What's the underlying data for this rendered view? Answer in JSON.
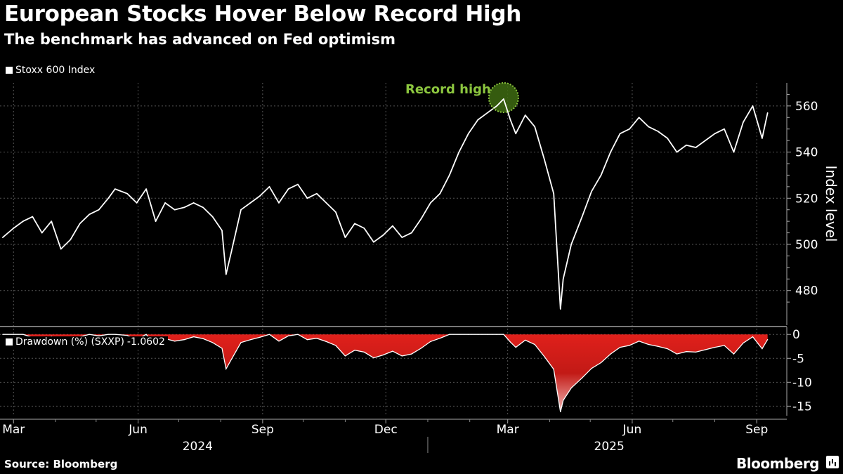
{
  "header": {
    "title": "European Stocks Hover Below Record High",
    "subtitle": "The benchmark has advanced on Fed optimism"
  },
  "footer": {
    "source": "Source: Bloomberg",
    "brand": "Bloomberg"
  },
  "chart_data": [
    {
      "type": "line",
      "series": [
        {
          "name": "Stoxx 600 Index",
          "color": "#ffffff"
        }
      ],
      "ylabel": "Index level",
      "ylim": [
        465,
        570
      ],
      "yticks": [
        480,
        500,
        520,
        540,
        560
      ],
      "annotation": {
        "text": "Record high",
        "date": "2025-02-26",
        "value": 563,
        "color": "#8cc63f"
      },
      "x": [
        "2024-02-22",
        "2024-03-01",
        "2024-03-08",
        "2024-03-15",
        "2024-03-22",
        "2024-03-29",
        "2024-04-05",
        "2024-04-12",
        "2024-04-19",
        "2024-04-26",
        "2024-05-03",
        "2024-05-10",
        "2024-05-15",
        "2024-05-24",
        "2024-05-31",
        "2024-06-07",
        "2024-06-14",
        "2024-06-21",
        "2024-06-28",
        "2024-07-05",
        "2024-07-12",
        "2024-07-19",
        "2024-07-26",
        "2024-08-02",
        "2024-08-05",
        "2024-08-09",
        "2024-08-16",
        "2024-08-23",
        "2024-08-30",
        "2024-09-06",
        "2024-09-13",
        "2024-09-20",
        "2024-09-27",
        "2024-10-04",
        "2024-10-11",
        "2024-10-18",
        "2024-10-25",
        "2024-11-01",
        "2024-11-08",
        "2024-11-15",
        "2024-11-22",
        "2024-11-29",
        "2024-12-06",
        "2024-12-13",
        "2024-12-20",
        "2024-12-27",
        "2025-01-03",
        "2025-01-10",
        "2025-01-17",
        "2025-01-24",
        "2025-01-31",
        "2025-02-07",
        "2025-02-14",
        "2025-02-21",
        "2025-02-26",
        "2025-03-03",
        "2025-03-07",
        "2025-03-14",
        "2025-03-21",
        "2025-03-28",
        "2025-04-04",
        "2025-04-09",
        "2025-04-11",
        "2025-04-17",
        "2025-04-25",
        "2025-05-02",
        "2025-05-09",
        "2025-05-16",
        "2025-05-23",
        "2025-05-30",
        "2025-06-06",
        "2025-06-13",
        "2025-06-20",
        "2025-06-27",
        "2025-07-04",
        "2025-07-11",
        "2025-07-18",
        "2025-07-25",
        "2025-08-01",
        "2025-08-08",
        "2025-08-15",
        "2025-08-22",
        "2025-08-29",
        "2025-09-05",
        "2025-09-09"
      ],
      "values": [
        503,
        507,
        510,
        512,
        505,
        510,
        498,
        502,
        509,
        513,
        515,
        520,
        524,
        522,
        518,
        524,
        510,
        518,
        515,
        516,
        518,
        516,
        512,
        506,
        487,
        497,
        515,
        518,
        521,
        525,
        518,
        524,
        526,
        520,
        522,
        518,
        514,
        503,
        509,
        507,
        501,
        504,
        508,
        503,
        505,
        511,
        518,
        522,
        530,
        540,
        548,
        554,
        557,
        560,
        563,
        554,
        548,
        556,
        551,
        537,
        522,
        472,
        485,
        500,
        512,
        523,
        530,
        540,
        548,
        550,
        555,
        551,
        549,
        546,
        540,
        543,
        542,
        545,
        548,
        550,
        540,
        553,
        560,
        546,
        557
      ]
    },
    {
      "type": "area",
      "series": [
        {
          "name": "Drawdown (%) (SXXP)",
          "last_value": "-1.0602",
          "color": "#e0201b"
        }
      ],
      "ylim": [
        -17,
        1.5
      ],
      "yticks": [
        0,
        -5,
        -10,
        -15
      ],
      "values": [
        0,
        0,
        0,
        -0.6,
        -1.8,
        -0.4,
        -2.2,
        -1.5,
        -0.5,
        0,
        -0.3,
        0,
        0,
        -0.2,
        -1.1,
        0,
        -2.6,
        -0.9,
        -1.4,
        -1.1,
        -0.5,
        -0.9,
        -1.7,
        -2.9,
        -7.2,
        -5.2,
        -1.7,
        -1.1,
        -0.6,
        0,
        -1.4,
        -0.3,
        0,
        -1.1,
        -0.8,
        -1.5,
        -2.3,
        -4.5,
        -3.3,
        -3.7,
        -4.9,
        -4.3,
        -3.5,
        -4.5,
        -4.1,
        -2.9,
        -1.5,
        -0.8,
        0,
        0,
        0,
        0,
        0,
        0,
        0,
        -1.6,
        -2.7,
        -1.2,
        -2.1,
        -4.6,
        -7.3,
        -16.2,
        -13.8,
        -11.2,
        -9.1,
        -7.1,
        -5.9,
        -4.1,
        -2.7,
        -2.3,
        -1.4,
        -2.1,
        -2.5,
        -3.0,
        -4.1,
        -3.6,
        -3.7,
        -3.2,
        -2.7,
        -2.3,
        -4.1,
        -1.8,
        -0.5,
        -3.0,
        -1.06
      ]
    }
  ],
  "x_axis": {
    "month_labels": [
      {
        "date": "2024-03-01",
        "label": "Mar"
      },
      {
        "date": "2024-06-01",
        "label": "Jun"
      },
      {
        "date": "2024-09-01",
        "label": "Sep"
      },
      {
        "date": "2024-12-01",
        "label": "Dec"
      },
      {
        "date": "2025-03-01",
        "label": "Mar"
      },
      {
        "date": "2025-06-01",
        "label": "Jun"
      },
      {
        "date": "2025-09-01",
        "label": "Sep"
      }
    ],
    "year_labels": [
      {
        "date": "2024-07-15",
        "label": "2024"
      },
      {
        "date": "2025-05-15",
        "label": "2025"
      }
    ]
  }
}
